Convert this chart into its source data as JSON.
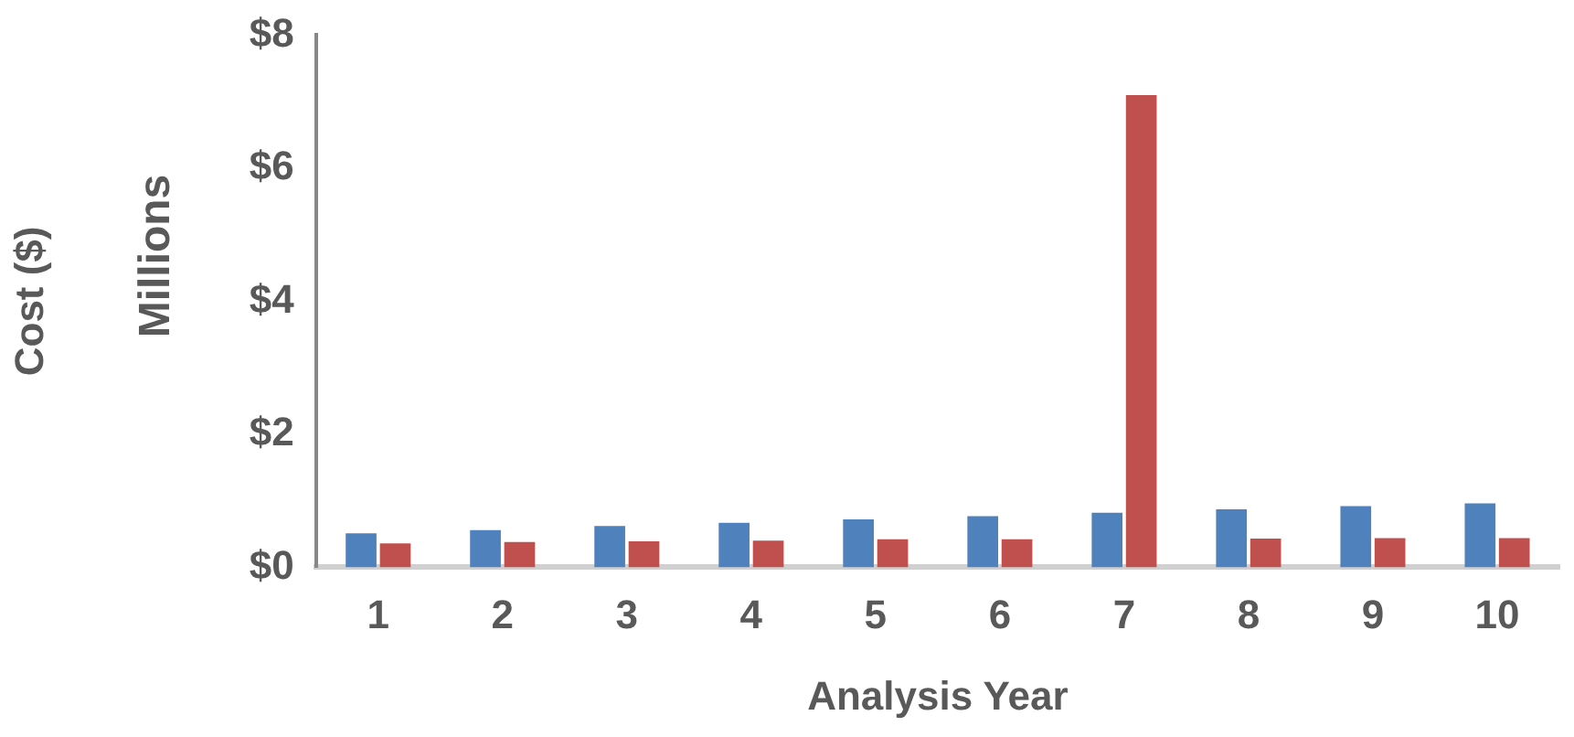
{
  "chart_data": {
    "type": "bar",
    "xlabel": "Analysis Year",
    "ylabel": "Cost ($)",
    "annotations": [
      "Millions"
    ],
    "categories": [
      "1",
      "2",
      "3",
      "4",
      "5",
      "6",
      "7",
      "8",
      "9",
      "10"
    ],
    "series": [
      {
        "color": "#4f81bd",
        "values": [
          0.51,
          0.56,
          0.62,
          0.67,
          0.72,
          0.77,
          0.82,
          0.87,
          0.92,
          0.96
        ]
      },
      {
        "color": "#c0504d",
        "values": [
          0.36,
          0.38,
          0.39,
          0.4,
          0.42,
          0.42,
          7.1,
          0.43,
          0.44,
          0.44
        ]
      }
    ],
    "ylim": [
      0,
      8
    ],
    "yticks": [
      {
        "value": 0,
        "label": "$0"
      },
      {
        "value": 2,
        "label": "$2"
      },
      {
        "value": 4,
        "label": "$4"
      },
      {
        "value": 6,
        "label": "$6"
      },
      {
        "value": 8,
        "label": "$8"
      }
    ],
    "grid": false,
    "legend": false
  }
}
